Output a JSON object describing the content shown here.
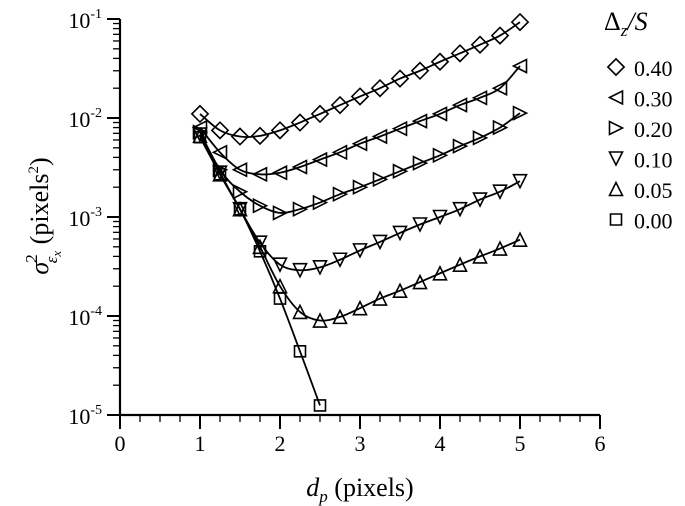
{
  "chart_data": {
    "type": "scatter",
    "title": "",
    "xlabel": "d_p (pixels)",
    "ylabel": "σ²_εx (pixels²)",
    "x_scale": "linear",
    "y_scale": "log",
    "xlim": [
      0,
      6
    ],
    "ylim": [
      1e-05,
      0.1
    ],
    "x_ticks": [
      "0",
      "1",
      "2",
      "3",
      "4",
      "5",
      "6"
    ],
    "y_ticks": [
      "10^-5",
      "10^-4",
      "10^-3",
      "10^-2",
      "10^-1"
    ],
    "grid": false,
    "legend": {
      "title": "Δz/S",
      "position": "top-right-outside"
    },
    "x": [
      1.0,
      1.25,
      1.5,
      1.75,
      2.0,
      2.25,
      2.5,
      2.75,
      3.0,
      3.25,
      3.5,
      3.75,
      4.0,
      4.25,
      4.5,
      4.75,
      5.0
    ],
    "series": [
      {
        "name": "0.40",
        "marker": "diamond",
        "values": [
          0.011,
          0.0075,
          0.0065,
          0.0066,
          0.0075,
          0.009,
          0.011,
          0.0135,
          0.0165,
          0.02,
          0.025,
          0.03,
          0.037,
          0.045,
          0.055,
          0.068,
          0.093
        ]
      },
      {
        "name": "0.30",
        "marker": "triangle-left",
        "values": [
          0.008,
          0.0045,
          0.003,
          0.0027,
          0.0028,
          0.0032,
          0.0038,
          0.0045,
          0.0055,
          0.0065,
          0.0078,
          0.0093,
          0.011,
          0.0135,
          0.016,
          0.02,
          0.0335
        ]
      },
      {
        "name": "0.20",
        "marker": "triangle-right",
        "values": [
          0.0072,
          0.003,
          0.0018,
          0.0013,
          0.0011,
          0.0012,
          0.0014,
          0.0017,
          0.002,
          0.0024,
          0.0029,
          0.0035,
          0.0042,
          0.0052,
          0.0063,
          0.008,
          0.0112
        ]
      },
      {
        "name": "0.10",
        "marker": "triangle-down",
        "values": [
          0.0068,
          0.0028,
          0.0012,
          0.00055,
          0.00033,
          0.00029,
          0.00031,
          0.00037,
          0.00046,
          0.00056,
          0.00069,
          0.00084,
          0.001,
          0.0012,
          0.0015,
          0.0018,
          0.0023
        ]
      },
      {
        "name": "0.05",
        "marker": "triangle-up",
        "values": [
          0.0066,
          0.0027,
          0.0012,
          0.0005,
          0.0002,
          0.00011,
          9e-05,
          9.8e-05,
          0.00012,
          0.00015,
          0.00018,
          0.00022,
          0.00027,
          0.00033,
          0.0004,
          0.00048,
          0.00059
        ]
      },
      {
        "name": "0.00",
        "marker": "square",
        "values": [
          0.0064,
          0.0027,
          0.0012,
          0.00045,
          0.00015,
          4.4e-05,
          1.25e-05,
          null,
          null,
          null,
          null,
          null,
          null,
          null,
          null,
          null,
          null
        ]
      }
    ]
  },
  "labels": {
    "x_axis_title_var": "d",
    "x_axis_title_sub": "p",
    "x_axis_title_unit": " (pixels)",
    "y_axis_title_var": "σ",
    "y_axis_title_sup": "2",
    "y_axis_title_sub": "ε",
    "y_axis_title_subsub": "x",
    "y_axis_title_unit_pre": " (pixels",
    "y_axis_title_unit_sup": "2",
    "y_axis_title_unit_post": ")",
    "legend_title_delta": "Δ",
    "legend_title_sub": "z",
    "legend_title_rest": "/S",
    "legend_items": [
      "0.40",
      "0.30",
      "0.20",
      "0.10",
      "0.05",
      "0.00"
    ]
  }
}
